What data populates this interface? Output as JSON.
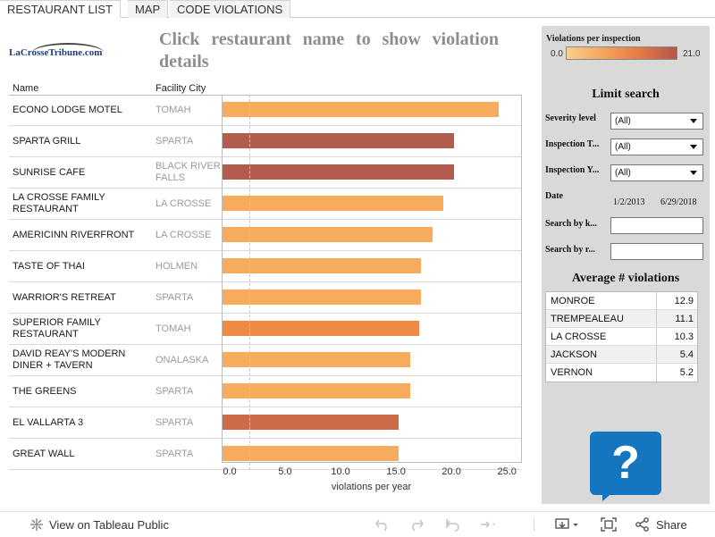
{
  "tabs": [
    {
      "label": "RESTAURANT LIST",
      "active": true
    },
    {
      "label": "MAP",
      "active": false
    },
    {
      "label": "CODE VIOLATIONS",
      "active": false
    }
  ],
  "logo": {
    "text": "LaCrosseTribune.com"
  },
  "title": "Click restaurant name to show violation details",
  "table": {
    "col_name": "Name",
    "col_city": "Facility City"
  },
  "chart_data": {
    "type": "bar",
    "orientation": "horizontal",
    "categories": [
      "ECONO LODGE MOTEL",
      "SPARTA GRILL",
      "SUNRISE CAFE",
      "LA CROSSE FAMILY RESTAURANT",
      "AMERICINN RIVERFRONT",
      "TASTE OF THAI",
      "WARRIOR'S RETREAT",
      "SUPERIOR FAMILY RESTAURANT",
      "DAVID REAY'S MODERN DINER + TAVERN",
      "THE GREENS",
      "EL VALLARTA 3",
      "GREAT WALL"
    ],
    "cities": [
      "TOMAH",
      "SPARTA",
      "BLACK RIVER FALLS",
      "LA CROSSE",
      "LA CROSSE",
      "HOLMEN",
      "SPARTA",
      "TOMAH",
      "ONALASKA",
      "SPARTA",
      "SPARTA",
      "SPARTA"
    ],
    "values": [
      24.9,
      20.9,
      20.9,
      19.9,
      18.9,
      17.9,
      17.9,
      17.7,
      16.9,
      16.9,
      15.9,
      15.9
    ],
    "colors": [
      "#f7ab5c",
      "#b15c4c",
      "#b15c4c",
      "#f7ab5c",
      "#f7ab5c",
      "#f7ab5c",
      "#f7ab5c",
      "#ee8a46",
      "#f7ab5c",
      "#f7ab5c",
      "#cc6a4a",
      "#f7ab5c"
    ],
    "reference_line": 2.5,
    "xlim": [
      0,
      27
    ],
    "xticks": [
      "0.0",
      "5.0",
      "10.0",
      "15.0",
      "20.0",
      "25.0"
    ],
    "xtick_values": [
      0,
      5,
      10,
      15,
      20,
      25
    ],
    "xlabel": "violations per year",
    "ylabel": ""
  },
  "legend": {
    "title": "Violations per inspection",
    "min": "0.0",
    "max": "21.0"
  },
  "filters": {
    "title": "Limit search",
    "severity_label": "Severity level",
    "severity_value": "(All)",
    "insp_type_label": "Inspection T...",
    "insp_type_value": "(All)",
    "insp_year_label": "Inspection Y...",
    "insp_year_value": "(All)",
    "date_label": "Date",
    "date_start": "1/2/2013",
    "date_end": "6/29/2018",
    "search_k_label": "Search by k...",
    "search_r_label": "Search by r...",
    "search_k_value": "",
    "search_r_value": ""
  },
  "averages": {
    "title": "Average # violations",
    "rows": [
      {
        "county": "MONROE",
        "value": "12.9"
      },
      {
        "county": "TREMPEALEAU",
        "value": "11.1"
      },
      {
        "county": "LA CROSSE",
        "value": "10.3"
      },
      {
        "county": "JACKSON",
        "value": "5.4"
      },
      {
        "county": "VERNON",
        "value": "5.2"
      }
    ]
  },
  "help": {
    "symbol": "?"
  },
  "toolbar": {
    "view_label": "View on Tableau Public",
    "share_label": "Share"
  }
}
